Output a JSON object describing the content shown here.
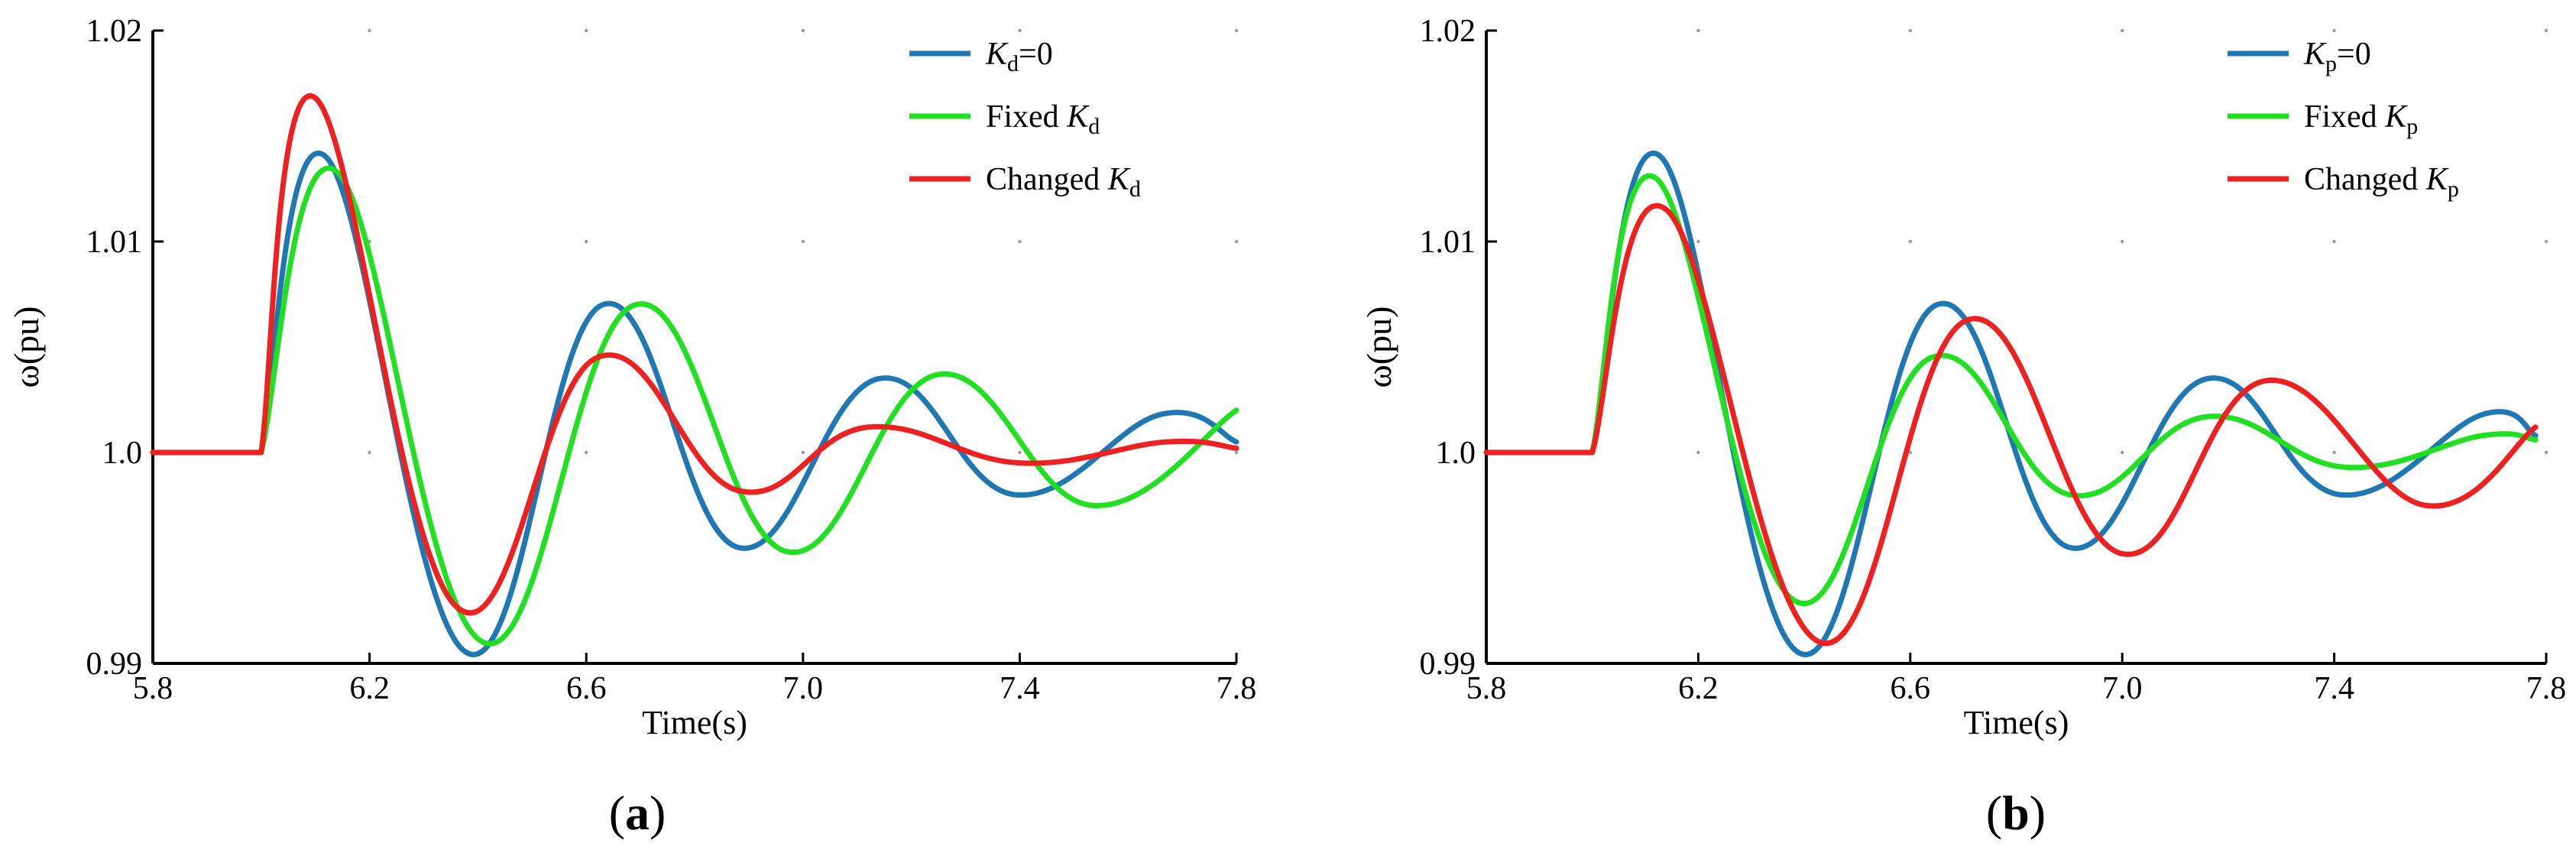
{
  "chart_data": [
    {
      "type": "line",
      "panel_label": "a",
      "xlabel": "Time(s)",
      "ylabel": "ω(pu)",
      "xlim": [
        5.8,
        7.8
      ],
      "ylim": [
        0.99,
        1.02
      ],
      "x_ticks": [
        5.8,
        6.2,
        6.6,
        7.0,
        7.4,
        7.8
      ],
      "x_tick_labels": [
        "5.8",
        "6.2",
        "6.6",
        "7.0",
        "7.4",
        "7.8"
      ],
      "y_ticks": [
        0.99,
        1.0,
        1.01,
        1.02
      ],
      "y_tick_labels": [
        "0.99",
        "1.0",
        "1.01",
        "1.02"
      ],
      "grid": "dotted",
      "legend_position": "top-right",
      "series": [
        {
          "name": "Kd=0",
          "legend_symbol": "K",
          "legend_subscript": "d",
          "legend_prefix": "",
          "legend_suffix": "=0",
          "color": "#1f77b4",
          "x": [
            5.8,
            6.0,
            6.12,
            6.38,
            6.63,
            6.88,
            7.14,
            7.39,
            7.66,
            7.8
          ],
          "y": [
            1.0,
            1.0,
            1.014,
            0.9905,
            1.007,
            0.9955,
            1.0035,
            0.998,
            1.0018,
            1.0005
          ]
        },
        {
          "name": "Fixed Kd",
          "legend_symbol": "K",
          "legend_subscript": "d",
          "legend_prefix": "Fixed ",
          "legend_suffix": "",
          "color": "#21e021",
          "x": [
            5.8,
            6.0,
            6.14,
            6.41,
            6.69,
            6.97,
            7.25,
            7.53,
            7.8
          ],
          "y": [
            1.0,
            1.0,
            1.0133,
            0.991,
            1.007,
            0.9953,
            1.0037,
            0.9975,
            1.002
          ]
        },
        {
          "name": "Changed Kd",
          "legend_symbol": "K",
          "legend_subscript": "d",
          "legend_prefix": "Changed  ",
          "legend_suffix": "",
          "color": "#ee2020",
          "x": [
            5.8,
            6.0,
            6.1,
            6.36,
            6.62,
            6.88,
            7.12,
            7.4,
            7.67,
            7.8
          ],
          "y": [
            1.0,
            1.0,
            1.0168,
            0.9927,
            1.0045,
            0.9982,
            1.0012,
            0.9995,
            1.0005,
            1.0002
          ]
        }
      ]
    },
    {
      "type": "line",
      "panel_label": "b",
      "xlabel": "Time(s)",
      "ylabel": "ω(pu)",
      "xlim": [
        5.8,
        7.8
      ],
      "ylim": [
        0.99,
        1.02
      ],
      "x_ticks": [
        5.8,
        6.2,
        6.6,
        7.0,
        7.4,
        7.8
      ],
      "x_tick_labels": [
        "5.8",
        "6.2",
        "6.6",
        "7.0",
        "7.4",
        "7.8"
      ],
      "y_ticks": [
        0.99,
        1.0,
        1.01,
        1.02
      ],
      "y_tick_labels": [
        "0.99",
        "1.0",
        "1.01",
        "1.02"
      ],
      "grid": "dotted",
      "legend_position": "top-right",
      "series": [
        {
          "name": "Kp=0",
          "legend_symbol": "K",
          "legend_subscript": "p",
          "legend_prefix": "",
          "legend_suffix": "=0",
          "color": "#1f77b4",
          "x": [
            5.8,
            6.0,
            6.13,
            6.39,
            6.65,
            6.9,
            7.16,
            7.41,
            7.68,
            7.78
          ],
          "y": [
            1.0,
            1.0,
            1.014,
            0.9905,
            1.007,
            0.9955,
            1.0035,
            0.998,
            1.0018,
            1.0008
          ]
        },
        {
          "name": "Fixed Kp",
          "legend_symbol": "K",
          "legend_subscript": "p",
          "legend_prefix": "Fixed ",
          "legend_suffix": "",
          "color": "#21e021",
          "x": [
            5.8,
            6.0,
            6.12,
            6.38,
            6.64,
            6.9,
            7.16,
            7.42,
            7.68,
            7.78
          ],
          "y": [
            1.0,
            1.0,
            1.013,
            0.993,
            1.0045,
            0.998,
            1.0017,
            0.9993,
            1.0008,
            1.0006
          ]
        },
        {
          "name": "Changed Kp",
          "legend_symbol": "K",
          "legend_subscript": "p",
          "legend_prefix": "Changed  ",
          "legend_suffix": "",
          "color": "#ee2020",
          "x": [
            5.8,
            6.0,
            6.14,
            6.43,
            6.71,
            7.0,
            7.27,
            7.57,
            7.78
          ],
          "y": [
            1.0,
            1.0,
            1.0115,
            0.991,
            1.0063,
            0.9952,
            1.0034,
            0.9975,
            1.0012
          ]
        }
      ]
    }
  ]
}
